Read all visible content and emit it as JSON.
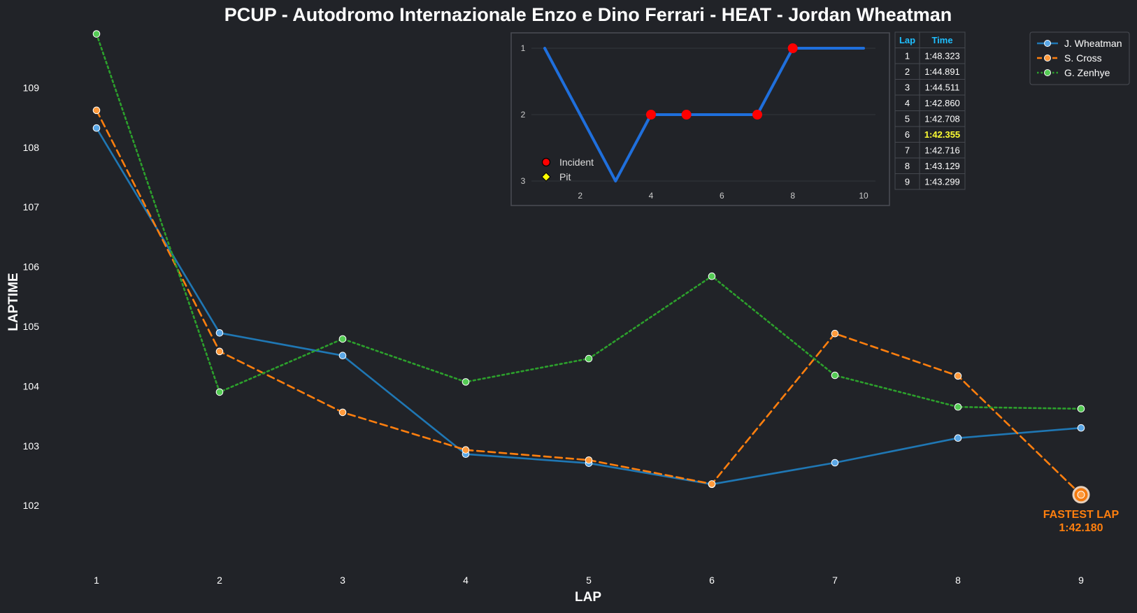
{
  "chart_data": {
    "type": "line",
    "title": "PCUP - Autodromo Internazionale Enzo e Dino Ferrari - HEAT - Jordan Wheatman",
    "xlabel": "LAP",
    "ylabel": "LAPTIME",
    "x": [
      1,
      2,
      3,
      4,
      5,
      6,
      7,
      8,
      9
    ],
    "ylim": [
      101.1,
      110.0
    ],
    "yticks": [
      102,
      103,
      104,
      105,
      106,
      107,
      108,
      109
    ],
    "grid": false,
    "legend_position": "top-right",
    "series": [
      {
        "name": "J. Wheatman",
        "color": "#1f77b4",
        "marker_color": "#5aa7e6",
        "style": "solid",
        "values": [
          108.323,
          104.891,
          104.511,
          102.86,
          102.708,
          102.355,
          102.716,
          103.129,
          103.299
        ]
      },
      {
        "name": "S. Cross",
        "color": "#ff7f0e",
        "marker_color": "#ff9a3c",
        "style": "dashed",
        "values": [
          108.62,
          104.58,
          103.56,
          102.93,
          102.76,
          102.36,
          104.88,
          104.17,
          102.18
        ]
      },
      {
        "name": "G. Zenhye",
        "color": "#2ca02c",
        "marker_color": "#55cc55",
        "style": "dotted",
        "values": [
          109.9,
          103.9,
          104.79,
          104.07,
          104.46,
          105.84,
          104.18,
          103.65,
          103.62
        ]
      }
    ],
    "fastest_lap": {
      "lap": 9,
      "value": 102.18,
      "label": "FASTEST LAP",
      "time": "1:42.180",
      "color": "#ff7f0e"
    },
    "inset": {
      "type": "line",
      "x": [
        1,
        2,
        3,
        4,
        5,
        6,
        7,
        8,
        9,
        10
      ],
      "values": [
        1,
        2,
        3,
        2,
        2,
        2,
        2,
        1,
        1,
        1
      ],
      "xticks": [
        2,
        4,
        6,
        8,
        10
      ],
      "yticks": [
        1,
        2,
        3
      ],
      "xlim": [
        0.6,
        10.4
      ],
      "ylim": [
        1.0,
        3.0
      ],
      "y_inverted": true,
      "line_color": "#1f6fdc",
      "incidents": [
        4,
        5,
        7,
        8
      ],
      "incident_color": "#ff0000",
      "pits": [],
      "legend": [
        {
          "label": "Incident",
          "color": "#ff0000",
          "shape": "circle"
        },
        {
          "label": "Pit",
          "color": "#ffff00",
          "shape": "diamond"
        }
      ]
    },
    "lap_table": {
      "headers": [
        "Lap",
        "Time"
      ],
      "header_color": "#1fbfff",
      "highlight_color": "#ffff33",
      "rows": [
        {
          "lap": "1",
          "time": "1:48.323",
          "best": false
        },
        {
          "lap": "2",
          "time": "1:44.891",
          "best": false
        },
        {
          "lap": "3",
          "time": "1:44.511",
          "best": false
        },
        {
          "lap": "4",
          "time": "1:42.860",
          "best": false
        },
        {
          "lap": "5",
          "time": "1:42.708",
          "best": false
        },
        {
          "lap": "6",
          "time": "1:42.355",
          "best": true
        },
        {
          "lap": "7",
          "time": "1:42.716",
          "best": false
        },
        {
          "lap": "8",
          "time": "1:43.129",
          "best": false
        },
        {
          "lap": "9",
          "time": "1:43.299",
          "best": false
        }
      ]
    }
  }
}
